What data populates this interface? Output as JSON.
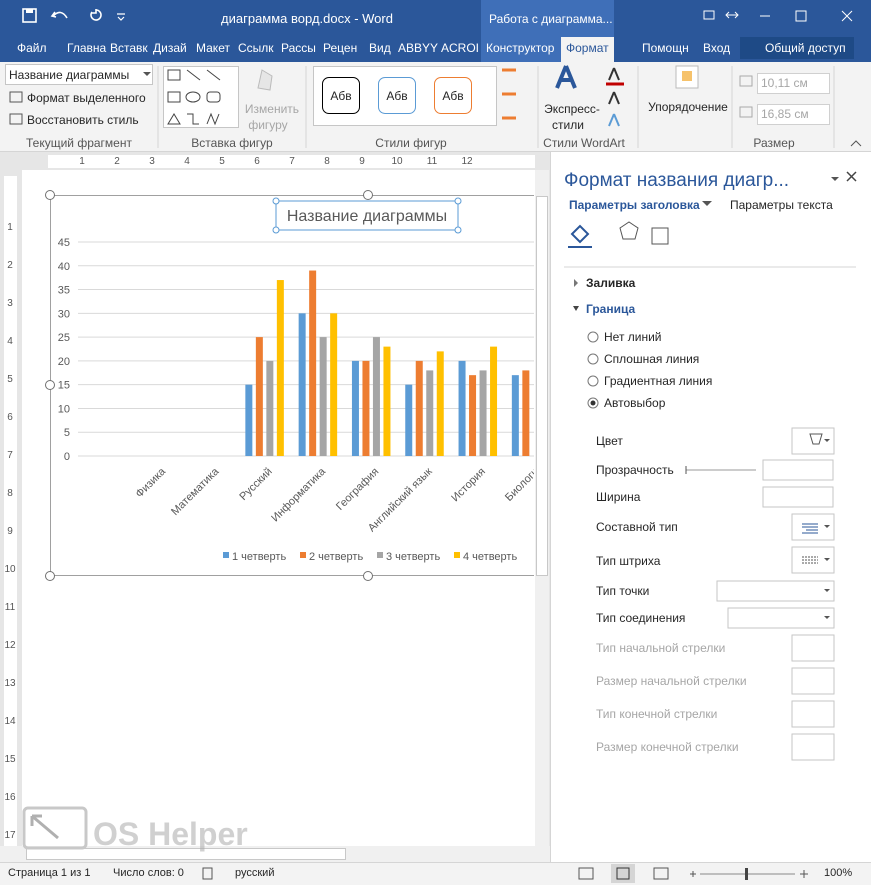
{
  "title_bar": {
    "document": "диаграмма ворд.docx - Word",
    "context": "Работа с диаграмма..."
  },
  "ribbon": {
    "tabs": [
      "Файл",
      "Главна",
      "Вставк",
      "Дизай",
      "Макет",
      "Ссылк",
      "Рассы",
      "Рецен",
      "Вид",
      "ABBYY",
      "ACROI",
      "Конструктор",
      "Формат"
    ],
    "tell_me": "Помощн",
    "sign_in": "Вход",
    "share": "Общий доступ",
    "current_fragment": {
      "selector": "Название диаграммы",
      "format": "Формат выделенного",
      "reset": "Восстановить стиль",
      "label": "Текущий фрагмент"
    },
    "insert_shapes": {
      "edit_1": "Изменить",
      "edit_2": "фигуру",
      "label": "Вставка фигур"
    },
    "shape_styles": {
      "samples": [
        "Абв",
        "Абв",
        "Абв"
      ],
      "label": "Стили фигур"
    },
    "wordart": {
      "quick_1": "Экспресс-",
      "quick_2": "стили",
      "label": "Стили WordArt"
    },
    "arrange": {
      "button": "Упорядочение"
    },
    "size": {
      "height": "10,11 см",
      "width": "16,85 см",
      "label": "Размер"
    }
  },
  "ruler": {
    "horizontal": [
      "1",
      "2",
      "3",
      "4",
      "5",
      "6",
      "7",
      "8",
      "9",
      "10",
      "11",
      "12"
    ],
    "vertical": [
      "1",
      "2",
      "3",
      "4",
      "5",
      "6",
      "7",
      "8",
      "9",
      "10",
      "11",
      "12",
      "13",
      "14",
      "15",
      "16",
      "17"
    ]
  },
  "chart_data": {
    "type": "bar",
    "title": "Название диаграммы",
    "categories": [
      "Физика",
      "Математика",
      "Русский",
      "Информатика",
      "География",
      "Английский язык",
      "История",
      "Биологи"
    ],
    "series": [
      {
        "name": "1 четверть",
        "color": "#5b9bd5",
        "values": [
          null,
          null,
          15,
          30,
          20,
          15,
          20,
          17
        ]
      },
      {
        "name": "2 четверть",
        "color": "#ed7d31",
        "values": [
          null,
          null,
          25,
          39,
          20,
          20,
          17,
          18
        ]
      },
      {
        "name": "3 четверть",
        "color": "#a5a5a5",
        "values": [
          null,
          null,
          20,
          25,
          25,
          18,
          18,
          null
        ]
      },
      {
        "name": "4 четверть",
        "color": "#ffc000",
        "values": [
          null,
          null,
          37,
          30,
          23,
          22,
          23,
          null
        ]
      }
    ],
    "ylim": [
      0,
      45
    ],
    "yticks": [
      0,
      5,
      10,
      15,
      20,
      25,
      30,
      35,
      40,
      45
    ],
    "grid": true,
    "legend": "bottom"
  },
  "pane": {
    "title": "Формат названия диагр...",
    "tabs": [
      "Параметры заголовка",
      "Параметры текста"
    ],
    "sections": [
      "Заливка",
      "Граница"
    ],
    "line_options": [
      "Нет линий",
      "Сплошная линия",
      "Градиентная линия",
      "Автовыбор"
    ],
    "properties": [
      "Цвет",
      "Прозрачность",
      "Ширина",
      "Составной тип",
      "Тип штриха",
      "Тип точки",
      "Тип соединения",
      "Тип начальной стрелки",
      "Размер начальной стрелки",
      "Тип конечной стрелки",
      "Размер конечной стрелки"
    ]
  },
  "status_bar": {
    "page": "Страница 1 из 1",
    "words": "Число слов: 0",
    "language": "русский",
    "zoom": "100%"
  },
  "watermark": "OS Helper"
}
